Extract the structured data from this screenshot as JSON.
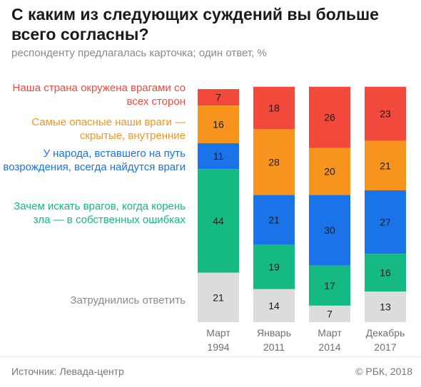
{
  "header": {
    "title": "С каким из следующих суждений вы больше всего согласны?",
    "subtitle": "респонденту предлагалась карточка; один ответ, %"
  },
  "legend": [
    {
      "label": "Наша страна окружена врагами со всех сторон",
      "color": "#f2493d"
    },
    {
      "label": "Самые опасные наши враги — скрытые, внутренние",
      "color": "#f7941d"
    },
    {
      "label": "У народа, вставшего на путь возрождения, всегда найдутся враги",
      "color": "#1a73e8"
    },
    {
      "label": "Зачем искать врагов, когда корень зла — в собственных ошибках",
      "color": "#15b982"
    },
    {
      "label": "Затруднились ответить",
      "color": "#8a8a8a"
    }
  ],
  "chart_data": {
    "type": "bar",
    "stacked": true,
    "categories": [
      "Март 1994",
      "Январь 2011",
      "Март 2014",
      "Декабрь 2017"
    ],
    "series": [
      {
        "name": "Наша страна окружена врагами со всех сторон",
        "color": "#f2493d",
        "values": [
          7,
          18,
          26,
          23
        ]
      },
      {
        "name": "Самые опасные наши враги — скрытые, внутренние",
        "color": "#f7941d",
        "values": [
          16,
          28,
          20,
          21
        ]
      },
      {
        "name": "У народа, вставшего на путь возрождения, всегда найдутся враги",
        "color": "#1a73e8",
        "values": [
          11,
          21,
          30,
          27
        ]
      },
      {
        "name": "Зачем искать врагов, когда корень зла — в собственных ошибках",
        "color": "#15b982",
        "values": [
          44,
          19,
          17,
          16
        ]
      },
      {
        "name": "Затруднились ответить",
        "color": "#dcdcdc",
        "values": [
          21,
          14,
          7,
          13
        ]
      }
    ],
    "unit": "%"
  },
  "footer": {
    "source": "Источник: Левада-центр",
    "copyright": "© РБК, 2018"
  }
}
